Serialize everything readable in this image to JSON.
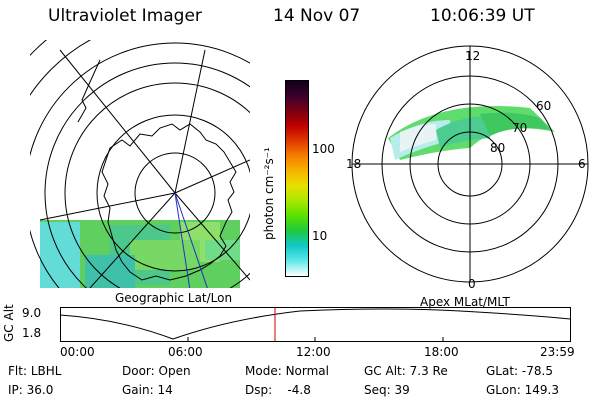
{
  "header": {
    "title": "Ultraviolet Imager",
    "date": "14 Nov 07",
    "time": "10:06:39 UT"
  },
  "colorbar": {
    "unit_label": "photon cm⁻²s⁻¹",
    "ticks": [
      "100",
      "10"
    ],
    "colors": [
      "#100018",
      "#3a0030",
      "#7a0010",
      "#c00000",
      "#e03a00",
      "#f57f00",
      "#f7b400",
      "#e8e000",
      "#a8e800",
      "#5ae000",
      "#20c840",
      "#10c8c8",
      "#60e8e8",
      "#ffffff"
    ]
  },
  "geo_panel": {
    "label": "Geographic Lat/Lon"
  },
  "polar_panel": {
    "label": "Apex  MLat/MLT",
    "mlt_labels": {
      "top": "12",
      "right": "6",
      "bottom": "0",
      "left": "18"
    },
    "lat_labels": [
      "60",
      "70",
      "80"
    ]
  },
  "timeline": {
    "ylabel": "GC Alt",
    "y_ticks": [
      "9.0",
      "1.8"
    ],
    "x_ticks": [
      "00:00",
      "06:00",
      "12:00",
      "18:00",
      "23:59"
    ],
    "marker_time": "10:06:39",
    "marker_color": "#d00000"
  },
  "status": {
    "row1": [
      {
        "key": "Flt:",
        "value": "LBHL"
      },
      {
        "key": "Door:",
        "value": "Open"
      },
      {
        "key": "Mode:",
        "value": "Normal"
      },
      {
        "key": "GC Alt:",
        "value": "7.3 Re"
      },
      {
        "key": "GLat:",
        "value": "-78.5"
      }
    ],
    "row2": [
      {
        "key": "IP:",
        "value": "36.0"
      },
      {
        "key": "Gain:",
        "value": "14"
      },
      {
        "key": "Dsp:",
        "value": "   -4.8"
      },
      {
        "key": "Seq:",
        "value": "39"
      },
      {
        "key": "GLon:",
        "value": "149.3"
      }
    ]
  }
}
